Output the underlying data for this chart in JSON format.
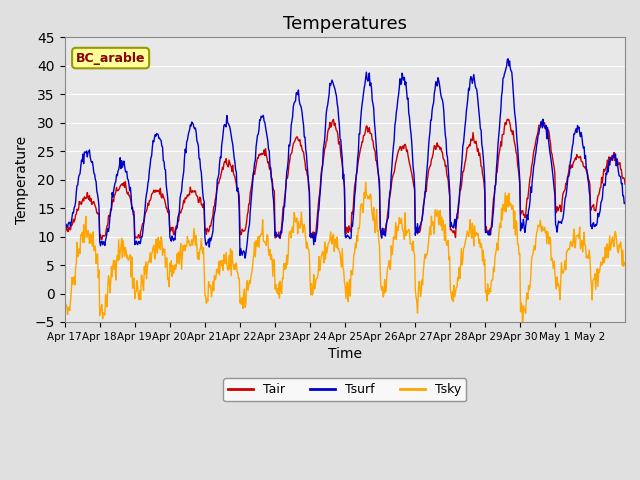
{
  "title": "Temperatures",
  "xlabel": "Time",
  "ylabel": "Temperature",
  "annotation": "BC_arable",
  "ylim": [
    -5,
    45
  ],
  "series_colors": {
    "Tair": "#CC0000",
    "Tsurf": "#0000CC",
    "Tsky": "#FFA500"
  },
  "legend_labels": [
    "Tair",
    "Tsurf",
    "Tsky"
  ],
  "xtick_labels": [
    "Apr 17",
    "Apr 18",
    "Apr 19",
    "Apr 20",
    "Apr 21",
    "Apr 22",
    "Apr 23",
    "Apr 24",
    "Apr 25",
    "Apr 26",
    "Apr 27",
    "Apr 28",
    "Apr 29",
    "Apr 30",
    "May 1",
    "May 2"
  ],
  "background_color": "#E0E0E0",
  "plot_bg_color": "#E8E8E8",
  "title_fontsize": 13,
  "axis_label_fontsize": 10,
  "n_days": 16,
  "pts_per_day": 48,
  "Tair_mins": [
    11,
    10,
    10,
    11,
    11,
    11,
    10,
    10,
    11,
    11,
    11,
    11,
    11,
    14,
    15,
    15
  ],
  "Tair_maxs": [
    17,
    19,
    18,
    18,
    23,
    25,
    27,
    30,
    29,
    26,
    26,
    27,
    30,
    30,
    24,
    24
  ],
  "Tsurf_mins": [
    12,
    9,
    9,
    10,
    9,
    7,
    10,
    10,
    10,
    11,
    11,
    12,
    11,
    12,
    12,
    12
  ],
  "Tsurf_maxs": [
    25,
    23,
    28,
    30,
    30,
    31,
    35,
    37,
    38,
    38,
    37,
    38,
    41,
    30,
    29,
    24
  ],
  "Tsky_mins": [
    -2,
    -3,
    0,
    5,
    0,
    -2,
    0,
    1,
    1,
    1,
    0,
    0,
    0,
    -3,
    2,
    2
  ],
  "Tsky_maxs": [
    11,
    8,
    8,
    9,
    6,
    10,
    13,
    9,
    17,
    12,
    14,
    11,
    16,
    12,
    10,
    9
  ]
}
